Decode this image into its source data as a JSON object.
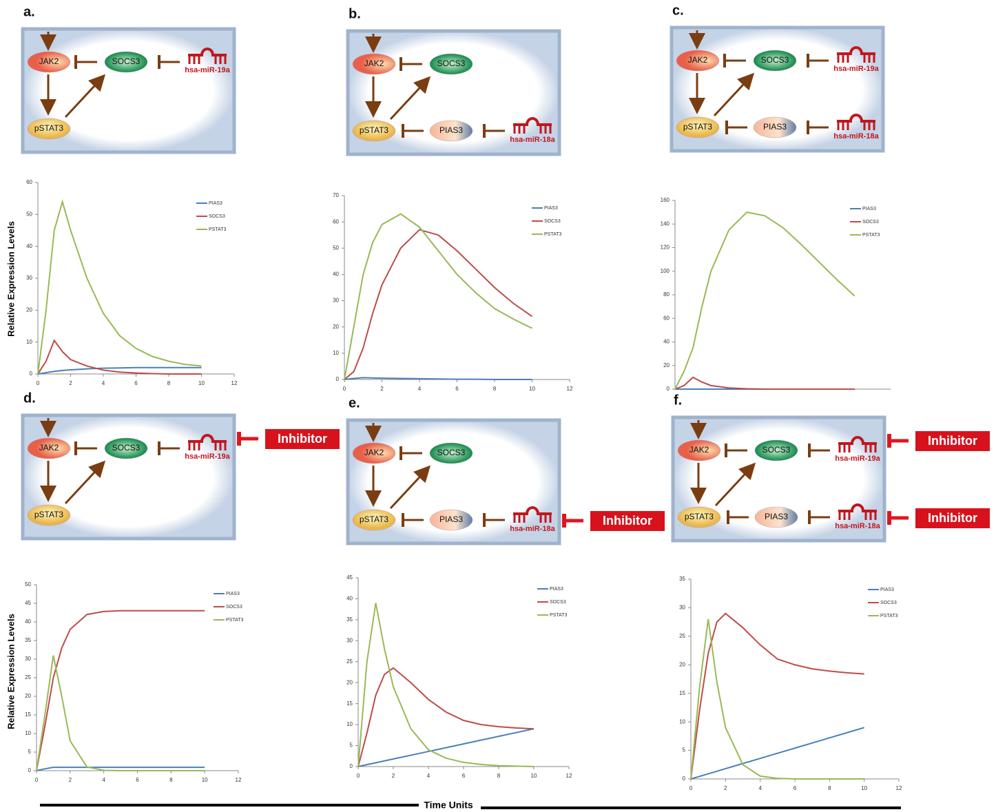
{
  "panels": [
    {
      "letter": "a.",
      "jak2": "JAK2",
      "socs3": "SOCS3",
      "pstat3": "pSTAT3",
      "mir19a": "hsa-miR-19a"
    },
    {
      "letter": "b.",
      "jak2": "JAK2",
      "socs3": "SOCS3",
      "pstat3": "pSTAT3",
      "pias3": "PIAS3",
      "mir18a": "hsa-miR-18a"
    },
    {
      "letter": "c.",
      "jak2": "JAK2",
      "socs3": "SOCS3",
      "pstat3": "pSTAT3",
      "pias3": "PIAS3",
      "mir19a": "hsa-miR-19a",
      "mir18a": "hsa-miR-18a"
    },
    {
      "letter": "d.",
      "jak2": "JAK2",
      "socs3": "SOCS3",
      "pstat3": "pSTAT3",
      "mir19a": "hsa-miR-19a",
      "inhibitor_19a": "Inhibitor"
    },
    {
      "letter": "e.",
      "jak2": "JAK2",
      "socs3": "SOCS3",
      "pstat3": "pSTAT3",
      "pias3": "PIAS3",
      "mir18a": "hsa-miR-18a",
      "inhibitor_18a": "Inhibitor"
    },
    {
      "letter": "f.",
      "jak2": "JAK2",
      "socs3": "SOCS3",
      "pstat3": "pSTAT3",
      "pias3": "PIAS3",
      "mir19a": "hsa-miR-19a",
      "mir18a": "hsa-miR-18a",
      "inhibitor_19a": "Inhibitor",
      "inhibitor_18a": "Inhibitor"
    }
  ],
  "x_label": "Time Units",
  "chart_data": [
    {
      "type": "line",
      "ylabel": "Relative Expression Levels",
      "x": [
        0,
        0.5,
        1,
        1.5,
        2,
        3,
        4,
        5,
        6,
        7,
        8,
        9,
        10
      ],
      "xlim": [
        0,
        12
      ],
      "xticks": [
        0,
        2,
        4,
        6,
        8,
        10,
        12
      ],
      "ylim": [
        0,
        60
      ],
      "yticks": [
        0,
        10,
        20,
        30,
        40,
        50,
        60
      ],
      "series": [
        {
          "name": "PIAS3",
          "color": "#4a7ebb",
          "values": [
            0,
            0.4,
            0.8,
            1.1,
            1.3,
            1.6,
            1.8,
            1.9,
            2,
            2,
            2,
            2,
            2
          ]
        },
        {
          "name": "SOCS3",
          "color": "#be4b48",
          "values": [
            0,
            4,
            10.5,
            7,
            4.5,
            2.5,
            1.2,
            0.6,
            0.3,
            0.1,
            0,
            0,
            0
          ]
        },
        {
          "name": "PSTAT3",
          "color": "#98b954",
          "values": [
            0,
            20,
            45,
            54,
            45,
            30,
            19,
            12,
            8,
            5.5,
            4,
            3,
            2.5
          ]
        }
      ]
    },
    {
      "type": "line",
      "x": [
        0,
        0.5,
        1,
        1.5,
        2,
        3,
        4,
        5,
        6,
        7,
        8,
        9,
        10
      ],
      "xlim": [
        0,
        12
      ],
      "xticks": [
        0,
        2,
        4,
        6,
        8,
        10,
        12
      ],
      "ylim": [
        0,
        70
      ],
      "yticks": [
        0,
        10,
        20,
        30,
        40,
        50,
        60,
        70
      ],
      "series": [
        {
          "name": "PIAS3",
          "color": "#4a7ebb",
          "values": [
            0,
            0.4,
            0.7,
            0.6,
            0.5,
            0.4,
            0.3,
            0.2,
            0.1,
            0.1,
            0,
            0,
            0
          ]
        },
        {
          "name": "SOCS3",
          "color": "#be4b48",
          "values": [
            0,
            3,
            12,
            25,
            36,
            50,
            57,
            55,
            49,
            42,
            35,
            29,
            24
          ]
        },
        {
          "name": "PSTAT3",
          "color": "#98b954",
          "values": [
            0,
            20,
            40,
            52,
            59,
            63,
            58,
            49,
            40,
            33,
            27,
            23,
            19.5
          ]
        }
      ]
    },
    {
      "type": "line",
      "x": [
        0,
        0.5,
        1,
        1.5,
        2,
        3,
        4,
        5,
        6,
        7,
        8,
        9,
        10
      ],
      "xlim": [
        0,
        12
      ],
      "ylim": [
        0,
        160
      ],
      "yticks": [
        0,
        20,
        40,
        60,
        80,
        100,
        120,
        140,
        160
      ],
      "series": [
        {
          "name": "PIAS3",
          "color": "#4a7ebb",
          "values": [
            0,
            0,
            0,
            0,
            0,
            0,
            0,
            0,
            0,
            0,
            0,
            0,
            0
          ]
        },
        {
          "name": "SOCS3",
          "color": "#be4b48",
          "values": [
            0,
            3,
            10,
            6,
            3,
            1,
            0.3,
            0,
            0,
            0,
            0,
            0,
            0
          ]
        },
        {
          "name": "PSTAT3",
          "color": "#98b954",
          "values": [
            0,
            15,
            35,
            70,
            100,
            135,
            150,
            147,
            137,
            123,
            108,
            93,
            79
          ]
        }
      ]
    },
    {
      "type": "line",
      "ylabel": "Relative Expression Levels",
      "x": [
        0,
        0.5,
        1,
        1.5,
        2,
        3,
        4,
        5,
        6,
        7,
        8,
        9,
        10
      ],
      "xlim": [
        0,
        12
      ],
      "xticks": [
        0,
        2,
        4,
        6,
        8,
        10,
        12
      ],
      "ylim": [
        0,
        50
      ],
      "yticks": [
        0,
        5,
        10,
        15,
        20,
        25,
        30,
        35,
        40,
        45,
        50
      ],
      "series": [
        {
          "name": "PIAS3",
          "color": "#4a7ebb",
          "values": [
            0,
            0.5,
            0.9,
            0.9,
            0.9,
            0.9,
            0.9,
            0.9,
            0.9,
            0.9,
            0.9,
            0.9,
            0.9
          ]
        },
        {
          "name": "SOCS3",
          "color": "#be4b48",
          "values": [
            0,
            12,
            25,
            33,
            38,
            42,
            42.8,
            43,
            43,
            43,
            43,
            43,
            43
          ]
        },
        {
          "name": "PSTAT3",
          "color": "#98b954",
          "values": [
            0,
            15,
            31,
            20,
            8,
            1,
            0.1,
            0,
            0,
            0,
            0,
            0,
            0
          ]
        }
      ]
    },
    {
      "type": "line",
      "x": [
        0,
        0.5,
        1,
        1.5,
        2,
        3,
        4,
        5,
        6,
        7,
        8,
        9,
        10
      ],
      "xlim": [
        0,
        12
      ],
      "xticks": [
        0,
        2,
        4,
        6,
        8,
        10,
        12
      ],
      "ylim": [
        0,
        45
      ],
      "yticks": [
        0,
        5,
        10,
        15,
        20,
        25,
        30,
        35,
        40,
        45
      ],
      "series": [
        {
          "name": "PIAS3",
          "color": "#4a7ebb",
          "values": [
            0,
            0.45,
            0.9,
            1.35,
            1.8,
            2.7,
            3.6,
            4.5,
            5.4,
            6.3,
            7.2,
            8.1,
            9
          ]
        },
        {
          "name": "SOCS3",
          "color": "#be4b48",
          "values": [
            0,
            8,
            17,
            22,
            23.5,
            20,
            16,
            13,
            11,
            10,
            9.5,
            9.2,
            9
          ]
        },
        {
          "name": "PSTAT3",
          "color": "#98b954",
          "values": [
            0,
            25,
            39,
            28,
            19,
            9,
            4,
            2,
            1,
            0.5,
            0.2,
            0.1,
            0
          ]
        }
      ]
    },
    {
      "type": "line",
      "x": [
        0,
        0.5,
        1,
        1.5,
        2,
        3,
        4,
        5,
        6,
        7,
        8,
        9,
        10
      ],
      "xlim": [
        0,
        12
      ],
      "xticks": [
        0,
        2,
        4,
        6,
        8,
        10,
        12
      ],
      "ylim": [
        0,
        35
      ],
      "yticks": [
        0,
        5,
        10,
        15,
        20,
        25,
        30,
        35
      ],
      "series": [
        {
          "name": "PIAS3",
          "color": "#4a7ebb",
          "values": [
            0,
            0.45,
            0.9,
            1.35,
            1.8,
            2.7,
            3.6,
            4.5,
            5.4,
            6.3,
            7.2,
            8.1,
            9
          ]
        },
        {
          "name": "SOCS3",
          "color": "#be4b48",
          "values": [
            0,
            12,
            22,
            27.5,
            29,
            26.5,
            23.5,
            21,
            20,
            19.3,
            18.9,
            18.6,
            18.4
          ]
        },
        {
          "name": "PSTAT3",
          "color": "#98b954",
          "values": [
            0,
            16,
            28,
            17,
            9,
            2.5,
            0.5,
            0.1,
            0,
            0,
            0,
            0,
            0
          ]
        }
      ]
    }
  ]
}
